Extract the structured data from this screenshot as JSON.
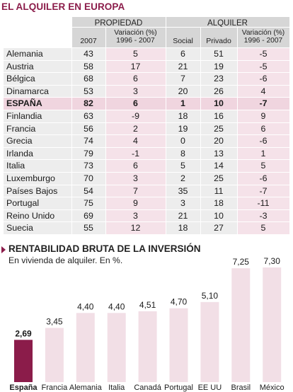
{
  "table": {
    "title": "EL ALQUILER EN EUROPA",
    "group_headers": {
      "propiedad": "PROPIEDAD",
      "alquiler": "ALQUILER"
    },
    "sub_headers": {
      "year": "2007",
      "var_line1": "Variación (%)",
      "var_line2": "1996 - 2007",
      "social": "Social",
      "privado": "Privado"
    },
    "rows": [
      {
        "country": "Alemania",
        "prop_2007": "43",
        "prop_var": "5",
        "social": "6",
        "privado": "51",
        "alq_var": "-5"
      },
      {
        "country": "Austria",
        "prop_2007": "58",
        "prop_var": "17",
        "social": "21",
        "privado": "19",
        "alq_var": "-5"
      },
      {
        "country": "Bélgica",
        "prop_2007": "68",
        "prop_var": "6",
        "social": "7",
        "privado": "23",
        "alq_var": "-6"
      },
      {
        "country": "Dinamarca",
        "prop_2007": "53",
        "prop_var": "3",
        "social": "20",
        "privado": "26",
        "alq_var": "4"
      },
      {
        "country": "ESPAÑA",
        "prop_2007": "82",
        "prop_var": "6",
        "social": "1",
        "privado": "10",
        "alq_var": "-7",
        "highlight": true
      },
      {
        "country": "Finlandia",
        "prop_2007": "63",
        "prop_var": "-9",
        "social": "18",
        "privado": "16",
        "alq_var": "9"
      },
      {
        "country": "Francia",
        "prop_2007": "56",
        "prop_var": "2",
        "social": "19",
        "privado": "25",
        "alq_var": "6"
      },
      {
        "country": "Grecia",
        "prop_2007": "74",
        "prop_var": "4",
        "social": "0",
        "privado": "20",
        "alq_var": "-6"
      },
      {
        "country": "Irlanda",
        "prop_2007": "79",
        "prop_var": "-1",
        "social": "8",
        "privado": "13",
        "alq_var": "1"
      },
      {
        "country": "Italia",
        "prop_2007": "73",
        "prop_var": "6",
        "social": "5",
        "privado": "14",
        "alq_var": "5"
      },
      {
        "country": "Luxemburgo",
        "prop_2007": "70",
        "prop_var": "3",
        "social": "2",
        "privado": "25",
        "alq_var": "-6"
      },
      {
        "country": "Países Bajos",
        "prop_2007": "54",
        "prop_var": "7",
        "social": "35",
        "privado": "11",
        "alq_var": "-7"
      },
      {
        "country": "Portugal",
        "prop_2007": "75",
        "prop_var": "9",
        "social": "3",
        "privado": "18",
        "alq_var": "-11"
      },
      {
        "country": "Reino Unido",
        "prop_2007": "69",
        "prop_var": "3",
        "social": "21",
        "privado": "10",
        "alq_var": "-3"
      },
      {
        "country": "Suecia",
        "prop_2007": "55",
        "prop_var": "12",
        "social": "18",
        "privado": "27",
        "alq_var": "5"
      }
    ]
  },
  "chart_data": {
    "type": "bar",
    "title": "RENTABILIDAD BRUTA DE LA INVERSIÓN",
    "subtitle": "En vivienda de alquiler. En %.",
    "categories": [
      "España",
      "Francia",
      "Alemania",
      "Italia",
      "Canadá",
      "Portugal",
      "EE UU",
      "Brasil",
      "México"
    ],
    "values": [
      2.69,
      3.45,
      4.4,
      4.4,
      4.51,
      4.7,
      5.1,
      7.25,
      7.3
    ],
    "value_labels": [
      "2,69",
      "3,45",
      "4,40",
      "4,40",
      "4,51",
      "4,70",
      "5,10",
      "7,25",
      "7,30"
    ],
    "highlight_category": "España",
    "ylim": [
      0,
      7.3
    ],
    "xlabel": "",
    "ylabel": "",
    "grid": false,
    "colors": {
      "highlight": "#8b1c4a",
      "default": "#f2dfe6"
    }
  },
  "colors": {
    "accent": "#8b1c4a",
    "header_bg": "#d6d6d6",
    "row_bg": "#ededed",
    "var_col_bg": "#f5e2e9",
    "spain_row_bg": "#f0d5df"
  }
}
